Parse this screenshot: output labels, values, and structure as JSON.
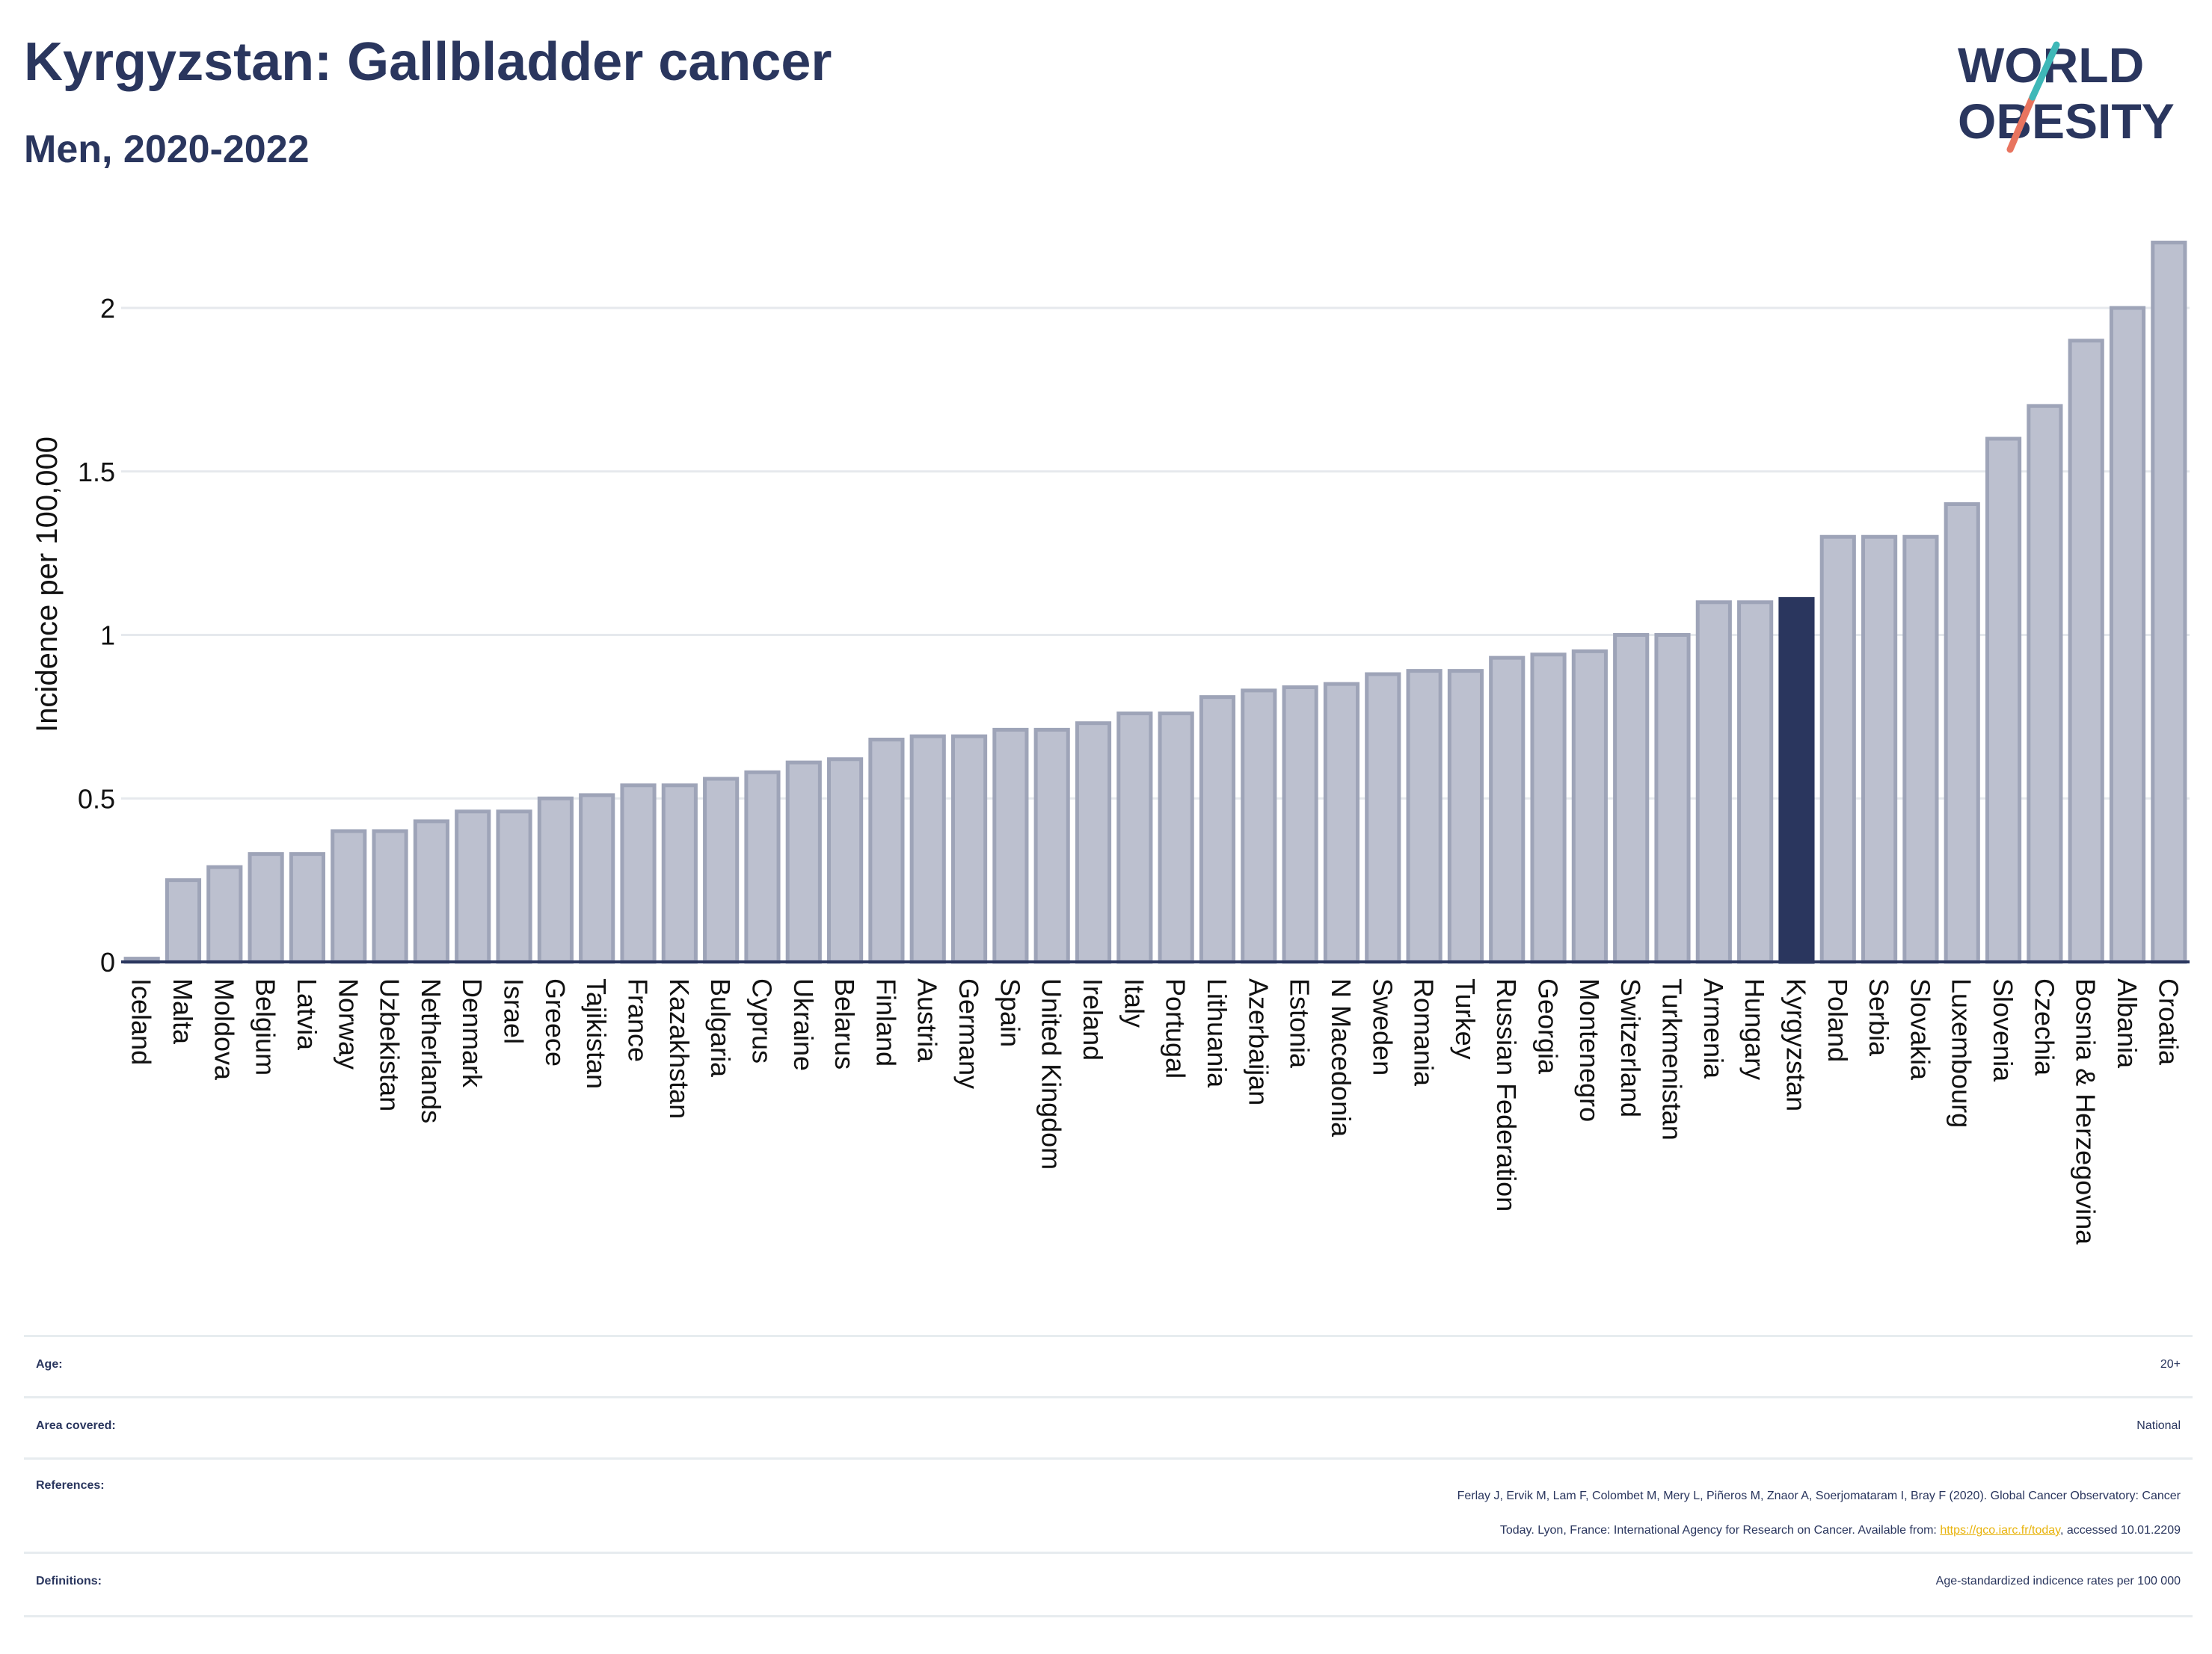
{
  "header": {
    "title": "Kyrgyzstan: Gallbladder cancer",
    "subtitle": "Men, 2020-2022"
  },
  "logo": {
    "line1": "WORLD",
    "line2": "OBESITY"
  },
  "colors": {
    "bar": "#bcc0cf",
    "bar_border": "#9ea4b8",
    "highlight": "#2a365e",
    "axis": "#2a365e",
    "grid": "#e6e9ed"
  },
  "chart_data": {
    "type": "bar",
    "ylabel": "Incidence per 100,000",
    "ylim": [
      0,
      2.2
    ],
    "yticks": [
      0,
      0.5,
      1,
      1.5,
      2
    ],
    "ytick_labels": [
      "0",
      "0.5",
      "1",
      "1.5",
      "2"
    ],
    "highlight": "Kyrgyzstan",
    "categories": [
      "Iceland",
      "Malta",
      "Moldova",
      "Belgium",
      "Latvia",
      "Norway",
      "Uzbekistan",
      "Netherlands",
      "Denmark",
      "Israel",
      "Greece",
      "Tajikistan",
      "France",
      "Kazakhstan",
      "Bulgaria",
      "Cyprus",
      "Ukraine",
      "Belarus",
      "Finland",
      "Austria",
      "Germany",
      "Spain",
      "United Kingdom",
      "Ireland",
      "Italy",
      "Portugal",
      "Lithuania",
      "Azerbaijan",
      "Estonia",
      "N Macedonia",
      "Sweden",
      "Romania",
      "Turkey",
      "Russian Federation",
      "Georgia",
      "Montenegro",
      "Switzerland",
      "Turkmenistan",
      "Armenia",
      "Hungary",
      "Kyrgyzstan",
      "Poland",
      "Serbia",
      "Slovakia",
      "Luxembourg",
      "Slovenia",
      "Czechia",
      "Bosnia & Herzegovina",
      "Albania",
      "Croatia"
    ],
    "values": [
      0.01,
      0.25,
      0.29,
      0.33,
      0.33,
      0.4,
      0.4,
      0.43,
      0.46,
      0.46,
      0.5,
      0.51,
      0.54,
      0.54,
      0.56,
      0.58,
      0.61,
      0.62,
      0.68,
      0.69,
      0.69,
      0.71,
      0.71,
      0.73,
      0.76,
      0.76,
      0.81,
      0.83,
      0.84,
      0.85,
      0.88,
      0.89,
      0.89,
      0.93,
      0.94,
      0.95,
      1.0,
      1.0,
      1.1,
      1.1,
      1.11,
      1.3,
      1.3,
      1.3,
      1.4,
      1.6,
      1.7,
      1.9,
      2.0,
      2.2
    ]
  },
  "meta": {
    "age_label": "Age:",
    "age_value": "20+",
    "area_label": "Area covered:",
    "area_value": "National",
    "references_label": "References:",
    "references_line1": "Ferlay J, Ervik M, Lam F, Colombet M, Mery L, Piñeros M, Znaor A, Soerjomataram I, Bray F (2020). Global Cancer Observatory: Cancer",
    "references_line2_pre": "Today. Lyon, France: International Agency for Research on Cancer. Available from: ",
    "references_link": "https://gco.iarc.fr/today",
    "references_line2_post": ", accessed 10.01.2209",
    "definitions_label": "Definitions:",
    "definitions_value": "Age-standardized indicence rates per 100 000"
  }
}
